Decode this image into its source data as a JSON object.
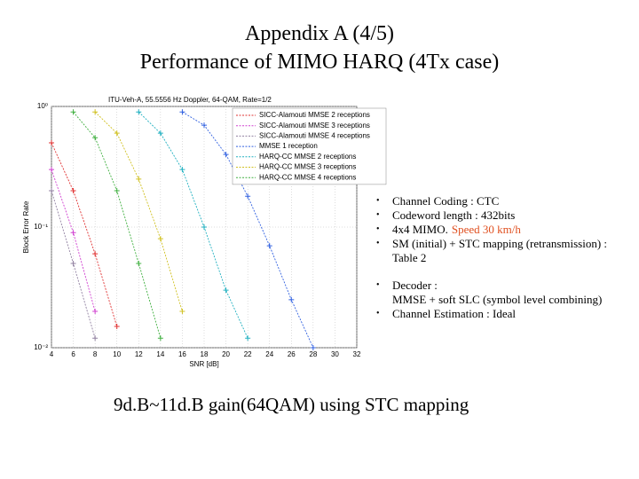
{
  "slide": {
    "title": [
      "Appendix A (4/5)",
      "Performance of MIMO HARQ (4Tx case)"
    ],
    "bullets": [
      "Channel Coding : CTC",
      "Codeword length : 432bits",
      {
        "text": "4x4 MIMO.",
        "highlight": "Speed 30 km/h"
      },
      "SM (initial) + STC mapping (retransmission) : Table 2",
      [
        "Decoder :",
        "MMSE + soft SLC (symbol level combining)"
      ],
      "Channel Estimation : Ideal"
    ],
    "footer": "9d.B~11d.B gain(64QAM) using STC mapping"
  },
  "chart_data": {
    "type": "line",
    "title": "ITU-Veh-A, 55.5556 Hz Doppler, 64-QAM, Rate=1/2",
    "x_label": "SNR [dB]",
    "y_label": "Block Error Rate",
    "x": [
      4,
      6,
      8,
      10,
      12,
      14,
      16,
      18,
      20,
      22,
      24,
      26,
      28,
      30,
      32
    ],
    "xlim": [
      4,
      32
    ],
    "xticks": [
      4,
      6,
      8,
      10,
      12,
      14,
      16,
      18,
      20,
      22,
      24,
      26,
      28,
      30,
      32
    ],
    "ylim": [
      0.01,
      1
    ],
    "yticks": [
      {
        "value": 0.01,
        "label": "10⁻²"
      },
      {
        "value": 0.1,
        "label": "10⁻¹"
      },
      {
        "value": 1,
        "label": "10⁰"
      }
    ],
    "log_y": true,
    "grid": true,
    "legend": "upper right",
    "series": [
      {
        "name": "SICC-Alamouti MMSE 2 receptions",
        "color": "#e03030",
        "values": [
          0.5,
          0.2,
          0.06,
          0.015,
          null,
          null,
          null,
          null,
          null,
          null,
          null,
          null,
          null,
          null,
          null
        ]
      },
      {
        "name": "SICC-Alamouti MMSE 3 receptions",
        "color": "#d040d0",
        "values": [
          0.3,
          0.09,
          0.02,
          null,
          null,
          null,
          null,
          null,
          null,
          null,
          null,
          null,
          null,
          null,
          null
        ]
      },
      {
        "name": "SICC-Alamouti MMSE 4 receptions",
        "color": "#9080a0",
        "values": [
          0.2,
          0.05,
          0.012,
          null,
          null,
          null,
          null,
          null,
          null,
          null,
          null,
          null,
          null,
          null,
          null
        ]
      },
      {
        "name": "MMSE 1 reception",
        "color": "#3060e0",
        "values": [
          null,
          null,
          null,
          null,
          null,
          null,
          0.9,
          0.7,
          0.4,
          0.18,
          0.07,
          0.025,
          0.01,
          null,
          null
        ]
      },
      {
        "name": "HARQ-CC MMSE 2 receptions",
        "color": "#20b0c0",
        "values": [
          null,
          null,
          null,
          null,
          0.9,
          0.6,
          0.3,
          0.1,
          0.03,
          0.012,
          null,
          null,
          null,
          null,
          null
        ]
      },
      {
        "name": "HARQ-CC MMSE 3 receptions",
        "color": "#d0c020",
        "values": [
          null,
          null,
          0.9,
          0.6,
          0.25,
          0.08,
          0.02,
          null,
          null,
          null,
          null,
          null,
          null,
          null,
          null
        ]
      },
      {
        "name": "HARQ-CC MMSE 4 receptions",
        "color": "#40b040",
        "values": [
          null,
          0.9,
          0.55,
          0.2,
          0.05,
          0.012,
          null,
          null,
          null,
          null,
          null,
          null,
          null,
          null,
          null
        ]
      }
    ]
  }
}
